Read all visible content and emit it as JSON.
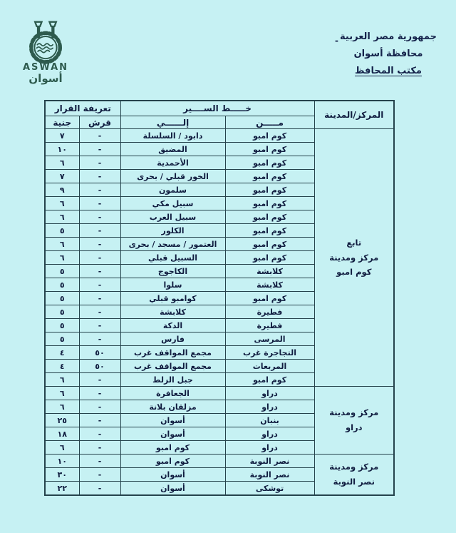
{
  "colors": {
    "background": "#c6f1f3",
    "ink": "#101c3f",
    "table_border": "#25434c",
    "logo": "#2e5b4e"
  },
  "logo": {
    "latin": "ASWAN",
    "arabic": "أسوان"
  },
  "header": {
    "mark": "-",
    "line1": "جمهورية مصر العربية",
    "line2": "محافظة أسوان",
    "line3": "مكتب المحافظ"
  },
  "table": {
    "headers": {
      "center_city": "المركز/المدينة",
      "route": "خـــــط الســــير",
      "from": "مـــــن",
      "to": "إلــــــي",
      "tariff": "تعريفة القرار",
      "qirsh": "قرش",
      "genih": "جنية"
    },
    "sections": [
      {
        "label": "تابع\nمركز ومدينة\nكوم امبو",
        "rows": [
          {
            "from": "كوم امبو",
            "to": "دابود / السلسلة",
            "qirsh": "-",
            "genih": "٧"
          },
          {
            "from": "كوم امبو",
            "to": "المضيق",
            "qirsh": "-",
            "genih": "١٠"
          },
          {
            "from": "كوم امبو",
            "to": "الأحمدية",
            "qirsh": "-",
            "genih": "٦"
          },
          {
            "from": "كوم امبو",
            "to": "الخور قبلي / بحرى",
            "qirsh": "-",
            "genih": "٧"
          },
          {
            "from": "كوم امبو",
            "to": "سلمون",
            "qirsh": "-",
            "genih": "٩"
          },
          {
            "from": "كوم امبو",
            "to": "سبيل مكي",
            "qirsh": "-",
            "genih": "٦"
          },
          {
            "from": "كوم امبو",
            "to": "سبيل العرب",
            "qirsh": "-",
            "genih": "٦"
          },
          {
            "from": "كوم امبو",
            "to": "الكلور",
            "qirsh": "-",
            "genih": "٥"
          },
          {
            "from": "كوم امبو",
            "to": "العتمور / مسجد / بحرى",
            "qirsh": "-",
            "genih": "٦"
          },
          {
            "from": "كوم امبو",
            "to": "السبيل قبلي",
            "qirsh": "-",
            "genih": "٦"
          },
          {
            "from": "كلابشة",
            "to": "الكاجوج",
            "qirsh": "-",
            "genih": "٥"
          },
          {
            "from": "كلابشة",
            "to": "سلوا",
            "qirsh": "-",
            "genih": "٥"
          },
          {
            "from": "كوم امبو",
            "to": "كوامبو قبلي",
            "qirsh": "-",
            "genih": "٥"
          },
          {
            "from": "فطيرة",
            "to": "كلابشة",
            "qirsh": "-",
            "genih": "٥"
          },
          {
            "from": "فطيرة",
            "to": "الدكة",
            "qirsh": "-",
            "genih": "٥"
          },
          {
            "from": "المرسى",
            "to": "فارس",
            "qirsh": "-",
            "genih": "٥"
          },
          {
            "from": "التجاجرة غرب",
            "to": "مجمع المواقف غرب",
            "qirsh": "٥٠",
            "genih": "٤"
          },
          {
            "from": "المربعات",
            "to": "مجمع المواقف غرب",
            "qirsh": "٥٠",
            "genih": "٤"
          },
          {
            "from": "كوم امبو",
            "to": "جبل الزلط",
            "qirsh": "-",
            "genih": "٦"
          }
        ]
      },
      {
        "label": "مركز ومدينة\nدراو",
        "rows": [
          {
            "from": "دراو",
            "to": "الجعافرة",
            "qirsh": "-",
            "genih": "٦"
          },
          {
            "from": "دراو",
            "to": "مزلقان بلانة",
            "qirsh": "-",
            "genih": "٦"
          },
          {
            "from": "بنبان",
            "to": "أسوان",
            "qirsh": "-",
            "genih": "٢٥"
          },
          {
            "from": "دراو",
            "to": "أسوان",
            "qirsh": "-",
            "genih": "١٨"
          },
          {
            "from": "دراو",
            "to": "كوم امبو",
            "qirsh": "-",
            "genih": "٦"
          }
        ]
      },
      {
        "label": "مركز ومدينة\nنصر النوبة",
        "rows": [
          {
            "from": "نصر النوبة",
            "to": "كوم امبو",
            "qirsh": "-",
            "genih": "١٠"
          },
          {
            "from": "نصر النوبة",
            "to": "أسوان",
            "qirsh": "-",
            "genih": "٣٠"
          },
          {
            "from": "توشكى",
            "to": "أسوان",
            "qirsh": "-",
            "genih": "٢٢"
          }
        ]
      }
    ]
  }
}
